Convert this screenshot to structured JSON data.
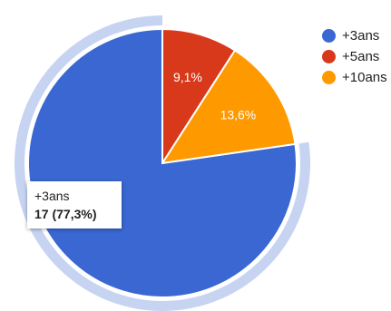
{
  "chart_data": {
    "type": "pie",
    "categories": [
      "+3ans",
      "+5ans",
      "+10ans"
    ],
    "values": [
      17,
      2,
      3
    ],
    "slice_labels": [
      "",
      "9,1%",
      "13,6%"
    ],
    "colors": [
      "#3a67d1",
      "#d8391b",
      "#ff9900"
    ],
    "highlight_color": "#c6d4f2",
    "highlighted_slice": 0,
    "legend_position": "right"
  },
  "tooltip": {
    "category": "+3ans",
    "value_text": "17 (77,3%)"
  }
}
